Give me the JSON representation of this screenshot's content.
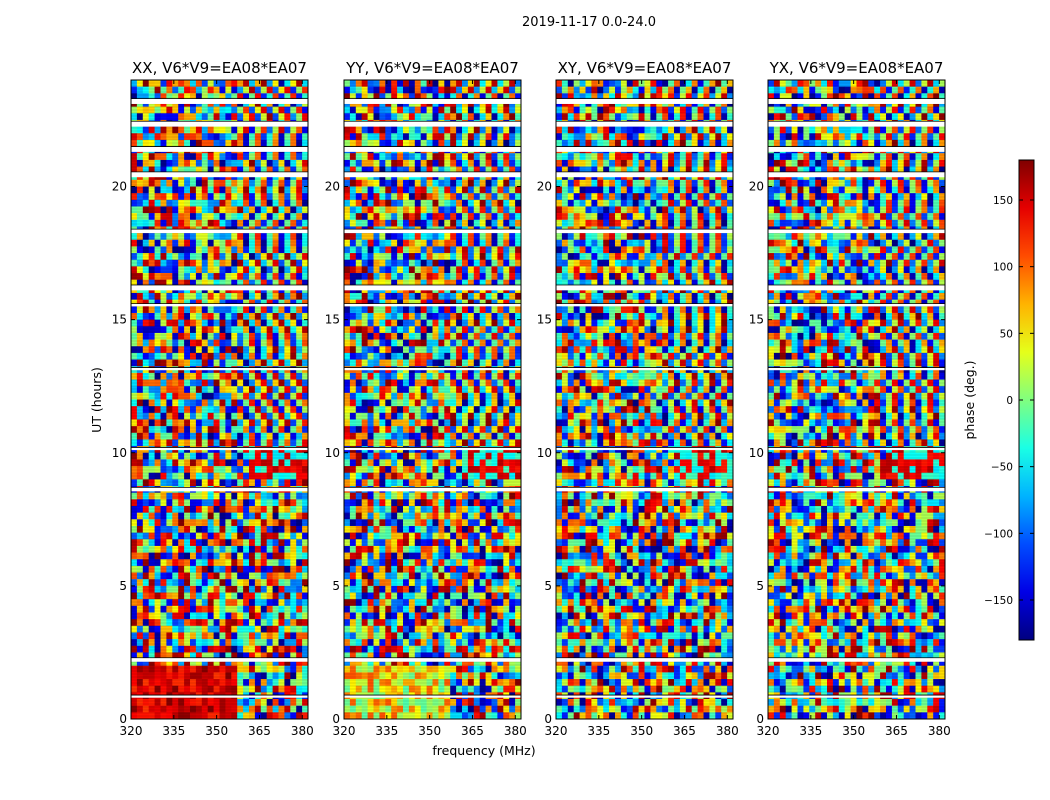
{
  "chart_data": {
    "type": "heatmap",
    "suptitle": "2019-11-17 0.0-24.0",
    "xlabel": "frequency (MHz)",
    "ylabel": "UT (hours)",
    "xlim": [
      320,
      382
    ],
    "ylim": [
      0,
      24
    ],
    "xticks": [
      320,
      335,
      350,
      365,
      380
    ],
    "yticks": [
      0,
      5,
      10,
      15,
      20
    ],
    "panels": [
      {
        "title": "XX, V6*V9=EA08*EA07",
        "pol": "XX"
      },
      {
        "title": "YY, V6*V9=EA08*EA07",
        "pol": "YY"
      },
      {
        "title": "XY, V6*V9=EA08*EA07",
        "pol": "XY"
      },
      {
        "title": "YX, V6*V9=EA08*EA07",
        "pol": "YX"
      }
    ],
    "colorbar": {
      "label": "phase (deg.)",
      "range": [
        -180,
        180
      ],
      "ticks": [
        150,
        100,
        50,
        0,
        -50,
        -100,
        -150
      ],
      "tick_labels": [
        "150",
        "100",
        "50",
        "0",
        "−50",
        "−100",
        "−150"
      ],
      "colormap": "jet"
    },
    "data_gaps_ut": [
      [
        23.1,
        23.3
      ],
      [
        22.25,
        22.45
      ],
      [
        21.3,
        21.5
      ],
      [
        20.35,
        20.55
      ],
      [
        18.25,
        18.4
      ],
      [
        16.1,
        16.3
      ],
      [
        15.5,
        15.6
      ],
      [
        13.1,
        13.2
      ],
      [
        10.1,
        10.2
      ],
      [
        8.55,
        8.7
      ],
      [
        2.15,
        2.3
      ],
      [
        0.8,
        0.9
      ]
    ]
  }
}
